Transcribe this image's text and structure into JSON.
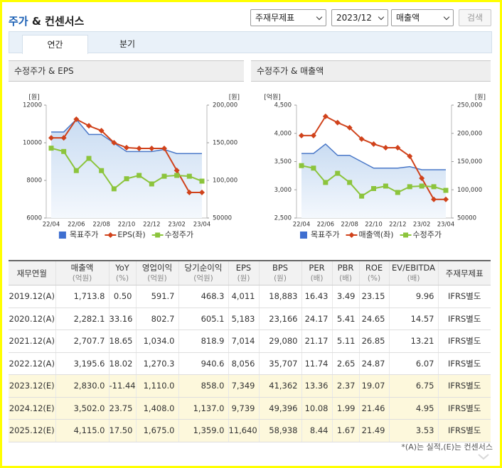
{
  "header": {
    "title_main": "주가",
    "title_rest": "& 컨센서스",
    "selects": [
      "주재무제표",
      "2023/12",
      "매출액"
    ],
    "button": "검색"
  },
  "tabs": [
    "연간",
    "분기"
  ],
  "chart_data": [
    {
      "type": "line",
      "title": "수정주가 & EPS",
      "y_unit": "[원]",
      "y2_unit": "[원]",
      "categories": [
        "22/04",
        null,
        "22/06",
        null,
        "22/08",
        null,
        "22/10",
        null,
        "22/12",
        null,
        "23/02",
        null,
        "23/04"
      ],
      "ylim": [
        6000,
        12000
      ],
      "yticks": [
        6000,
        8000,
        10000,
        12000
      ],
      "y2lim": [
        50000,
        200000
      ],
      "y2ticks": [
        50000,
        {
          "value": 100000,
          "label": "100,000"
        },
        {
          "value": 150000,
          "label": "150,000"
        },
        {
          "value": 200000,
          "label": "200,000"
        }
      ],
      "series": [
        {
          "name": "목표주가",
          "color": "#4a78c8",
          "area": true,
          "axis": "y2",
          "values": [
            164300,
            164300,
            181000,
            161000,
            161000,
            149700,
            138300,
            138300,
            138300,
            141000,
            135600,
            135600,
            135600
          ]
        },
        {
          "name": "EPS(좌)",
          "color": "#d0421b",
          "marker": "diamond",
          "values": [
            10260,
            10260,
            11250,
            10900,
            10640,
            10000,
            9740,
            9700,
            9700,
            9700,
            8530,
            7360,
            7360
          ]
        },
        {
          "name": "수정주가",
          "color": "#8cc43c",
          "marker": "square",
          "axis": "y2",
          "values": [
            142800,
            138400,
            113000,
            129200,
            113000,
            88800,
            102200,
            106600,
            95300,
            105500,
            106600,
            105500,
            99000
          ]
        }
      ]
    },
    {
      "type": "line",
      "title": "수정주가 & 매출액",
      "y_unit": "[억원]",
      "y2_unit": "[원]",
      "categories": [
        "22/04",
        null,
        "22/06",
        null,
        "22/08",
        null,
        "22/10",
        null,
        "22/12",
        null,
        "23/02",
        null,
        "23/04"
      ],
      "ylim": [
        2500,
        4500
      ],
      "yticks": [
        {
          "value": 2500,
          "label": "2,500"
        },
        {
          "value": 3000,
          "label": "3,000"
        },
        {
          "value": 3500,
          "label": "3,500"
        },
        {
          "value": 4000,
          "label": "4,000"
        },
        {
          "value": 4500,
          "label": "4,500"
        }
      ],
      "y2lim": [
        50000,
        250000
      ],
      "y2ticks": [
        50000,
        {
          "value": 100000,
          "label": "100,000"
        },
        {
          "value": 150000,
          "label": "150,000"
        },
        {
          "value": 200000,
          "label": "200,000"
        },
        {
          "value": 250000,
          "label": "250,000"
        }
      ],
      "series": [
        {
          "name": "목표주가",
          "color": "#4a78c8",
          "area": true,
          "axis": "y2",
          "values": [
            164300,
            164300,
            181000,
            161000,
            161000,
            149700,
            138300,
            138300,
            138300,
            141000,
            135600,
            135600,
            135600
          ]
        },
        {
          "name": "매출액(좌)",
          "color": "#d0421b",
          "marker": "diamond",
          "values": [
            3960,
            3960,
            4300,
            4190,
            4100,
            3900,
            3810,
            3745,
            3745,
            3595,
            3205,
            2830,
            2830
          ]
        },
        {
          "name": "수정주가",
          "color": "#8cc43c",
          "marker": "square",
          "axis": "y2",
          "values": [
            142800,
            138400,
            113000,
            129200,
            113000,
            88800,
            102200,
            106600,
            95300,
            105500,
            106600,
            105500,
            99000
          ]
        }
      ]
    }
  ],
  "table": {
    "columns": [
      {
        "name": "재무연월"
      },
      {
        "name": "매출액",
        "unit": "(억원)"
      },
      {
        "name": "YoY",
        "unit": "(%)"
      },
      {
        "name": "영업이익",
        "unit": "(억원)"
      },
      {
        "name": "당기순이익",
        "unit": "(억원)"
      },
      {
        "name": "EPS",
        "unit": "(원)"
      },
      {
        "name": "BPS",
        "unit": "(원)"
      },
      {
        "name": "PER",
        "unit": "(배)"
      },
      {
        "name": "PBR",
        "unit": "(배)"
      },
      {
        "name": "ROE",
        "unit": "(%)"
      },
      {
        "name": "EV/EBITDA",
        "unit": "(배)"
      },
      {
        "name": "주재무제표"
      }
    ],
    "rows": [
      {
        "cells": [
          "2019.12(A)",
          "1,713.8",
          "0.50",
          "591.7",
          "468.3",
          "4,011",
          "18,883",
          "16.43",
          "3.49",
          "23.15",
          "9.96",
          "IFRS별도"
        ]
      },
      {
        "cells": [
          "2020.12(A)",
          "2,282.1",
          "33.16",
          "802.7",
          "605.1",
          "5,183",
          "23,166",
          "24.17",
          "5.41",
          "24.65",
          "14.57",
          "IFRS별도"
        ]
      },
      {
        "cells": [
          "2021.12(A)",
          "2,707.7",
          "18.65",
          "1,034.0",
          "818.9",
          "7,014",
          "29,080",
          "21.17",
          "5.11",
          "26.85",
          "13.21",
          "IFRS별도"
        ]
      },
      {
        "cells": [
          "2022.12(A)",
          "3,195.6",
          "18.02",
          "1,270.3",
          "940.6",
          "8,056",
          "35,707",
          "11.74",
          "2.65",
          "24.87",
          "6.07",
          "IFRS별도"
        ]
      },
      {
        "cells": [
          "2023.12(E)",
          "2,830.0",
          "-11.44",
          "1,110.0",
          "858.0",
          "7,349",
          "41,362",
          "13.36",
          "2.37",
          "19.07",
          "6.75",
          "IFRS별도"
        ],
        "shaded": true
      },
      {
        "cells": [
          "2024.12(E)",
          "3,502.0",
          "23.75",
          "1,408.0",
          "1,137.0",
          "9,739",
          "49,396",
          "10.08",
          "1.99",
          "21.46",
          "4.95",
          "IFRS별도"
        ],
        "shaded": true
      },
      {
        "cells": [
          "2025.12(E)",
          "4,115.0",
          "17.50",
          "1,675.0",
          "1,359.0",
          "11,640",
          "58,938",
          "8.44",
          "1.67",
          "21.49",
          "3.53",
          "IFRS별도"
        ],
        "shaded": true
      }
    ]
  },
  "footnote": "*(A)는 실적,(E)는 컨센서스"
}
